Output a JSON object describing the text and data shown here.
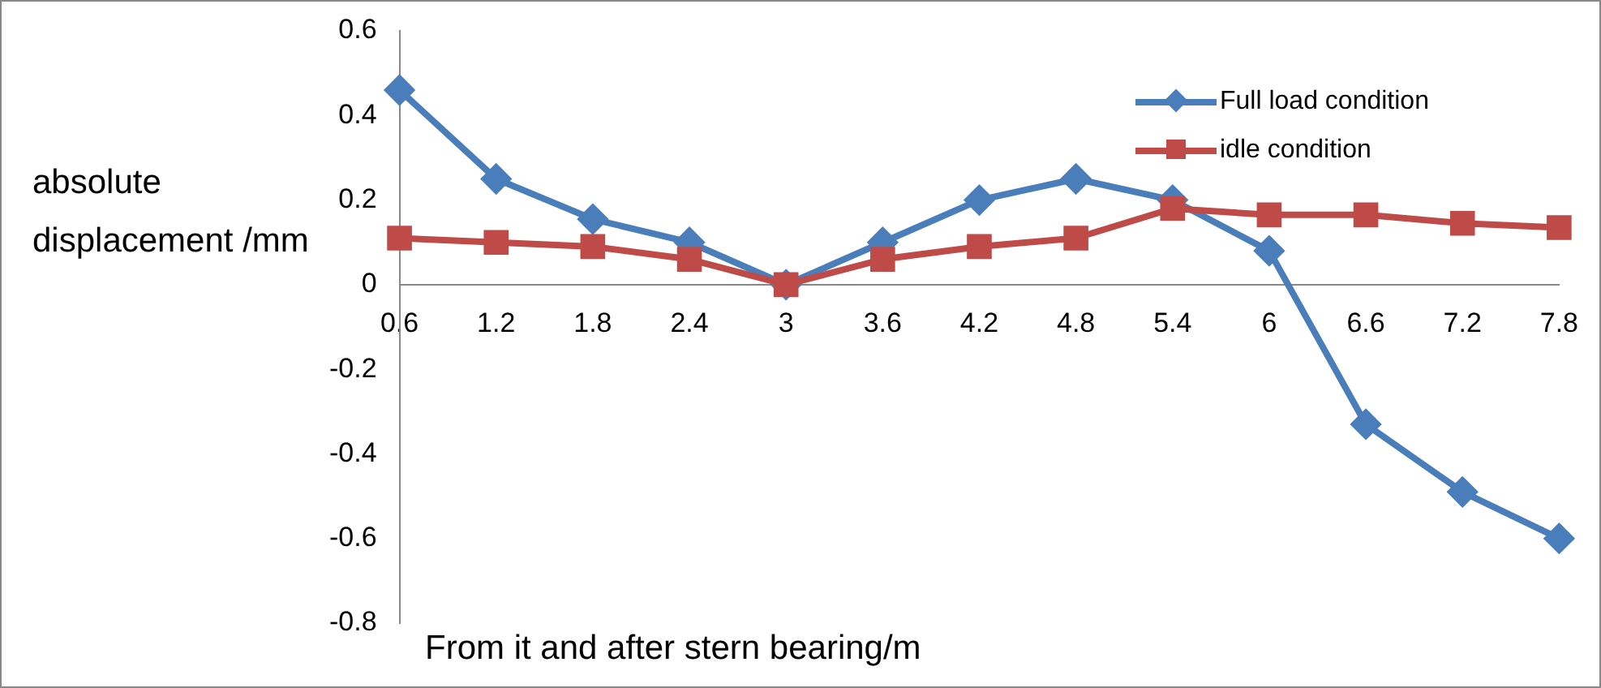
{
  "chart_data": {
    "type": "line",
    "xlabel": "From it and after stern bearing/m",
    "ylabel": "absolute displacement /mm",
    "categories": [
      "0.6",
      "1.2",
      "1.8",
      "2.4",
      "3",
      "3.6",
      "4.2",
      "4.8",
      "5.4",
      "6",
      "6.6",
      "7.2",
      "7.8"
    ],
    "series": [
      {
        "name": "Full load condition",
        "color": "#4a7ebb",
        "marker": "diamond",
        "values": [
          0.46,
          0.25,
          0.155,
          0.1,
          0,
          0.1,
          0.2,
          0.25,
          0.2,
          0.08,
          -0.33,
          -0.49,
          -0.6
        ]
      },
      {
        "name": "idle condition",
        "color": "#be4b48",
        "marker": "square",
        "values": [
          0.11,
          0.1,
          0.09,
          0.06,
          0,
          0.06,
          0.09,
          0.11,
          0.18,
          0.165,
          0.165,
          0.145,
          0.135
        ]
      }
    ],
    "ylim": [
      -0.8,
      0.6
    ],
    "yticks": [
      -0.8,
      -0.6,
      -0.4,
      -0.2,
      0,
      0.2,
      0.4,
      0.6
    ],
    "legend": "top right",
    "line_style": "solid"
  }
}
